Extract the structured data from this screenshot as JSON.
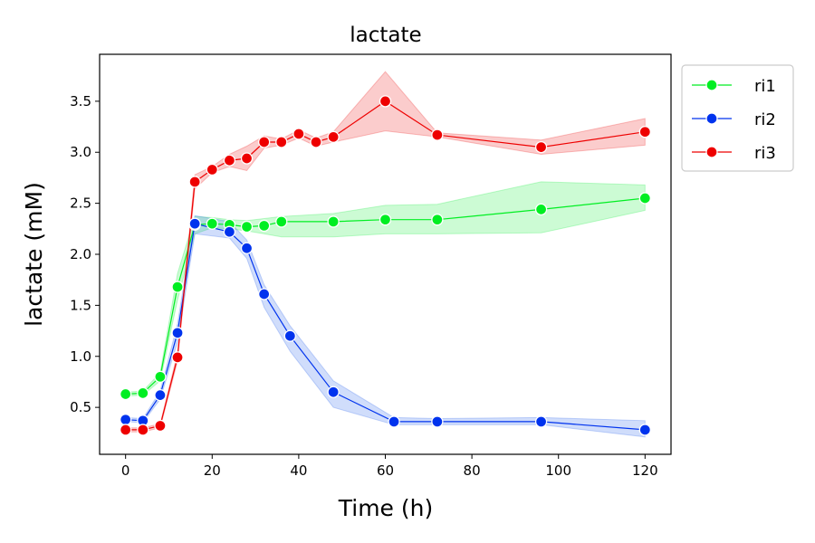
{
  "chart_data": {
    "type": "line",
    "title": "lactate",
    "xlabel": "Time (h)",
    "ylabel": "lactate (mM)",
    "xlim": [
      -6,
      126
    ],
    "ylim": [
      0.04,
      3.96
    ],
    "xticks": [
      0,
      20,
      40,
      60,
      80,
      100,
      120
    ],
    "yticks": [
      0.5,
      1.0,
      1.5,
      2.0,
      2.5,
      3.0,
      3.5
    ],
    "xtick_labels": [
      "0",
      "20",
      "40",
      "60",
      "80",
      "100",
      "120"
    ],
    "ytick_labels": [
      "0.5",
      "1.0",
      "1.5",
      "2.0",
      "2.5",
      "3.0",
      "3.5"
    ],
    "grid": false,
    "legend_position": "outside top-right",
    "series": [
      {
        "name": "ri1",
        "color": "#00ee22",
        "band_color": "#33ee55",
        "x": [
          0,
          4,
          8,
          12,
          16,
          20,
          24,
          28,
          32,
          36,
          48,
          60,
          72,
          96,
          120
        ],
        "y": [
          0.63,
          0.64,
          0.8,
          1.68,
          2.29,
          2.3,
          2.29,
          2.27,
          2.28,
          2.32,
          2.32,
          2.34,
          2.34,
          2.44,
          2.55
        ],
        "lower": [
          0.61,
          0.62,
          0.76,
          1.55,
          2.2,
          2.26,
          2.25,
          2.23,
          2.2,
          2.17,
          2.17,
          2.2,
          2.2,
          2.21,
          2.43
        ],
        "upper": [
          0.65,
          0.66,
          0.84,
          1.81,
          2.37,
          2.36,
          2.34,
          2.33,
          2.35,
          2.37,
          2.4,
          2.48,
          2.49,
          2.71,
          2.68
        ]
      },
      {
        "name": "ri2",
        "color": "#0033ee",
        "band_color": "#4477ee",
        "x": [
          0,
          4,
          8,
          12,
          16,
          24,
          28,
          32,
          38,
          48,
          62,
          72,
          96,
          120
        ],
        "y": [
          0.38,
          0.37,
          0.62,
          1.23,
          2.3,
          2.22,
          2.06,
          1.61,
          1.2,
          0.65,
          0.36,
          0.36,
          0.36,
          0.28
        ],
        "lower": [
          0.36,
          0.35,
          0.58,
          1.14,
          2.2,
          2.16,
          1.96,
          1.48,
          1.05,
          0.5,
          0.33,
          0.33,
          0.33,
          0.21
        ],
        "upper": [
          0.4,
          0.39,
          0.66,
          1.32,
          2.38,
          2.32,
          2.14,
          1.7,
          1.3,
          0.76,
          0.4,
          0.39,
          0.4,
          0.37
        ]
      },
      {
        "name": "ri3",
        "color": "#ee0000",
        "band_color": "#ee3333",
        "x": [
          0,
          4,
          8,
          12,
          16,
          20,
          24,
          28,
          32,
          36,
          40,
          44,
          48,
          60,
          72,
          96,
          120
        ],
        "y": [
          0.28,
          0.28,
          0.32,
          0.99,
          2.71,
          2.83,
          2.92,
          2.94,
          3.1,
          3.1,
          3.18,
          3.1,
          3.15,
          3.5,
          3.17,
          3.05,
          3.2
        ],
        "lower": [
          0.26,
          0.26,
          0.3,
          0.95,
          2.64,
          2.8,
          2.86,
          2.82,
          3.04,
          3.07,
          3.14,
          3.06,
          3.1,
          3.21,
          3.15,
          2.98,
          3.07
        ],
        "upper": [
          0.3,
          0.3,
          0.34,
          1.03,
          2.78,
          2.86,
          2.98,
          3.06,
          3.16,
          3.13,
          3.22,
          3.14,
          3.2,
          3.79,
          3.19,
          3.12,
          3.33
        ]
      }
    ]
  }
}
